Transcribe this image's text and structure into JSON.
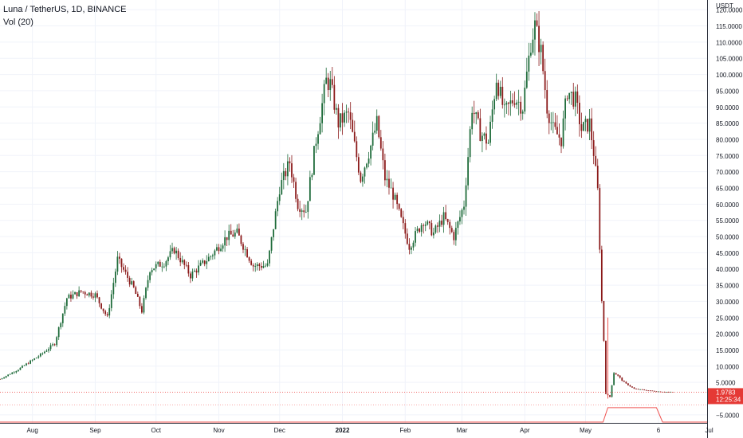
{
  "legend": {
    "symbol_line": "Luna / TetherUS, 1D, BINANCE",
    "volume_line": "Vol (20)"
  },
  "colors": {
    "up": "#26a69a",
    "down": "#ef5350",
    "up_dark": "#1e6b3a",
    "down_dark": "#8b1a1a",
    "grid": "#f0f3fa",
    "axis_text": "#131722",
    "price_line": "#ef5350",
    "badge_bg": "#e53935"
  },
  "chart_data": {
    "type": "candlestick",
    "title": "Luna / TetherUS, 1D, BINANCE",
    "y_unit": "USDT",
    "ylim": [
      -7.5,
      123
    ],
    "y_ticks": [
      -5,
      5,
      10,
      15,
      20,
      25,
      30,
      35,
      40,
      45,
      50,
      55,
      60,
      65,
      70,
      75,
      80,
      85,
      90,
      95,
      100,
      105,
      110,
      115,
      120
    ],
    "y_tick_labels": [
      "−5.0000",
      "5.0000",
      "10.0000",
      "15.0000",
      "20.0000",
      "25.0000",
      "30.0000",
      "35.0000",
      "40.0000",
      "45.0000",
      "50.0000",
      "55.0000",
      "60.0000",
      "65.0000",
      "70.0000",
      "75.0000",
      "80.0000",
      "85.0000",
      "90.0000",
      "95.0000",
      "100.0000",
      "105.0000",
      "110.0000",
      "115.0000",
      "120.0000"
    ],
    "x_start": "2021-07-16",
    "x_end": "2022-06-30",
    "x_ticks": [
      {
        "label": "Aug",
        "date": "2021-08-01"
      },
      {
        "label": "Sep",
        "date": "2021-09-01"
      },
      {
        "label": "Oct",
        "date": "2021-10-01"
      },
      {
        "label": "Nov",
        "date": "2021-11-01"
      },
      {
        "label": "Dec",
        "date": "2021-12-01"
      },
      {
        "label": "2022",
        "date": "2022-01-01",
        "bold": true
      },
      {
        "label": "Feb",
        "date": "2022-02-01"
      },
      {
        "label": "Mar",
        "date": "2022-03-01"
      },
      {
        "label": "Apr",
        "date": "2022-04-01"
      },
      {
        "label": "May",
        "date": "2022-05-01"
      },
      {
        "label": "6",
        "date": "2022-06-06"
      },
      {
        "label": "Jul",
        "date": "2022-07-01"
      }
    ],
    "price_anchors": [
      {
        "date": "2021-07-16",
        "close": 6.0
      },
      {
        "date": "2021-07-25",
        "close": 9.0
      },
      {
        "date": "2021-08-05",
        "close": 13.5
      },
      {
        "date": "2021-08-12",
        "close": 17.0
      },
      {
        "date": "2021-08-18",
        "close": 31.0
      },
      {
        "date": "2021-08-25",
        "close": 33.0
      },
      {
        "date": "2021-09-01",
        "close": 32.0
      },
      {
        "date": "2021-09-07",
        "close": 25.0
      },
      {
        "date": "2021-09-12",
        "close": 43.0
      },
      {
        "date": "2021-09-20",
        "close": 34.0
      },
      {
        "date": "2021-09-24",
        "close": 27.0
      },
      {
        "date": "2021-09-28",
        "close": 40.0
      },
      {
        "date": "2021-10-05",
        "close": 42.0
      },
      {
        "date": "2021-10-10",
        "close": 46.0
      },
      {
        "date": "2021-10-18",
        "close": 38.0
      },
      {
        "date": "2021-10-28",
        "close": 44.0
      },
      {
        "date": "2021-11-05",
        "close": 50.0
      },
      {
        "date": "2021-11-10",
        "close": 51.0
      },
      {
        "date": "2021-11-18",
        "close": 41.0
      },
      {
        "date": "2021-11-25",
        "close": 41.0
      },
      {
        "date": "2021-12-01",
        "close": 65.0
      },
      {
        "date": "2021-12-06",
        "close": 73.0
      },
      {
        "date": "2021-12-10",
        "close": 60.0
      },
      {
        "date": "2021-12-14",
        "close": 58.0
      },
      {
        "date": "2021-12-19",
        "close": 80.0
      },
      {
        "date": "2021-12-24",
        "close": 98.0
      },
      {
        "date": "2021-12-26",
        "close": 97.0
      },
      {
        "date": "2021-12-30",
        "close": 85.0
      },
      {
        "date": "2022-01-04",
        "close": 88.0
      },
      {
        "date": "2022-01-10",
        "close": 68.0
      },
      {
        "date": "2022-01-15",
        "close": 78.0
      },
      {
        "date": "2022-01-18",
        "close": 85.0
      },
      {
        "date": "2022-01-22",
        "close": 68.0
      },
      {
        "date": "2022-01-26",
        "close": 63.0
      },
      {
        "date": "2022-01-30",
        "close": 55.0
      },
      {
        "date": "2022-02-03",
        "close": 47.0
      },
      {
        "date": "2022-02-10",
        "close": 55.0
      },
      {
        "date": "2022-02-15",
        "close": 51.0
      },
      {
        "date": "2022-02-20",
        "close": 56.0
      },
      {
        "date": "2022-02-25",
        "close": 50.0
      },
      {
        "date": "2022-03-02",
        "close": 60.0
      },
      {
        "date": "2022-03-06",
        "close": 90.0
      },
      {
        "date": "2022-03-10",
        "close": 82.0
      },
      {
        "date": "2022-03-14",
        "close": 79.0
      },
      {
        "date": "2022-03-18",
        "close": 99.0
      },
      {
        "date": "2022-03-22",
        "close": 88.0
      },
      {
        "date": "2022-03-27",
        "close": 93.0
      },
      {
        "date": "2022-03-31",
        "close": 90.0
      },
      {
        "date": "2022-04-04",
        "close": 110.0
      },
      {
        "date": "2022-04-06",
        "close": 115.0
      },
      {
        "date": "2022-04-09",
        "close": 107.0
      },
      {
        "date": "2022-04-12",
        "close": 90.0
      },
      {
        "date": "2022-04-15",
        "close": 83.0
      },
      {
        "date": "2022-04-19",
        "close": 80.0
      },
      {
        "date": "2022-04-22",
        "close": 95.0
      },
      {
        "date": "2022-04-26",
        "close": 92.0
      },
      {
        "date": "2022-04-29",
        "close": 83.0
      },
      {
        "date": "2022-05-03",
        "close": 85.0
      },
      {
        "date": "2022-05-05",
        "close": 76.0
      },
      {
        "date": "2022-05-07",
        "close": 64.0
      },
      {
        "date": "2022-05-09",
        "close": 30.0
      },
      {
        "date": "2022-05-10",
        "close": 18.0
      },
      {
        "date": "2022-05-11",
        "close": 1.5
      },
      {
        "date": "2022-05-13",
        "close": 0.5
      },
      {
        "date": "2022-05-15",
        "close": 8.0
      },
      {
        "date": "2022-05-17",
        "close": 7.0
      },
      {
        "date": "2022-05-20",
        "close": 5.0
      },
      {
        "date": "2022-05-25",
        "close": 3.0
      },
      {
        "date": "2022-06-05",
        "close": 2.2
      },
      {
        "date": "2022-06-13",
        "close": 1.98
      }
    ],
    "spikes": [
      {
        "date": "2022-05-12",
        "high": 25.0,
        "low": 0.0
      }
    ],
    "last_price": {
      "value": 1.9783,
      "label": "1.9783",
      "countdown": "12:25:34"
    }
  }
}
